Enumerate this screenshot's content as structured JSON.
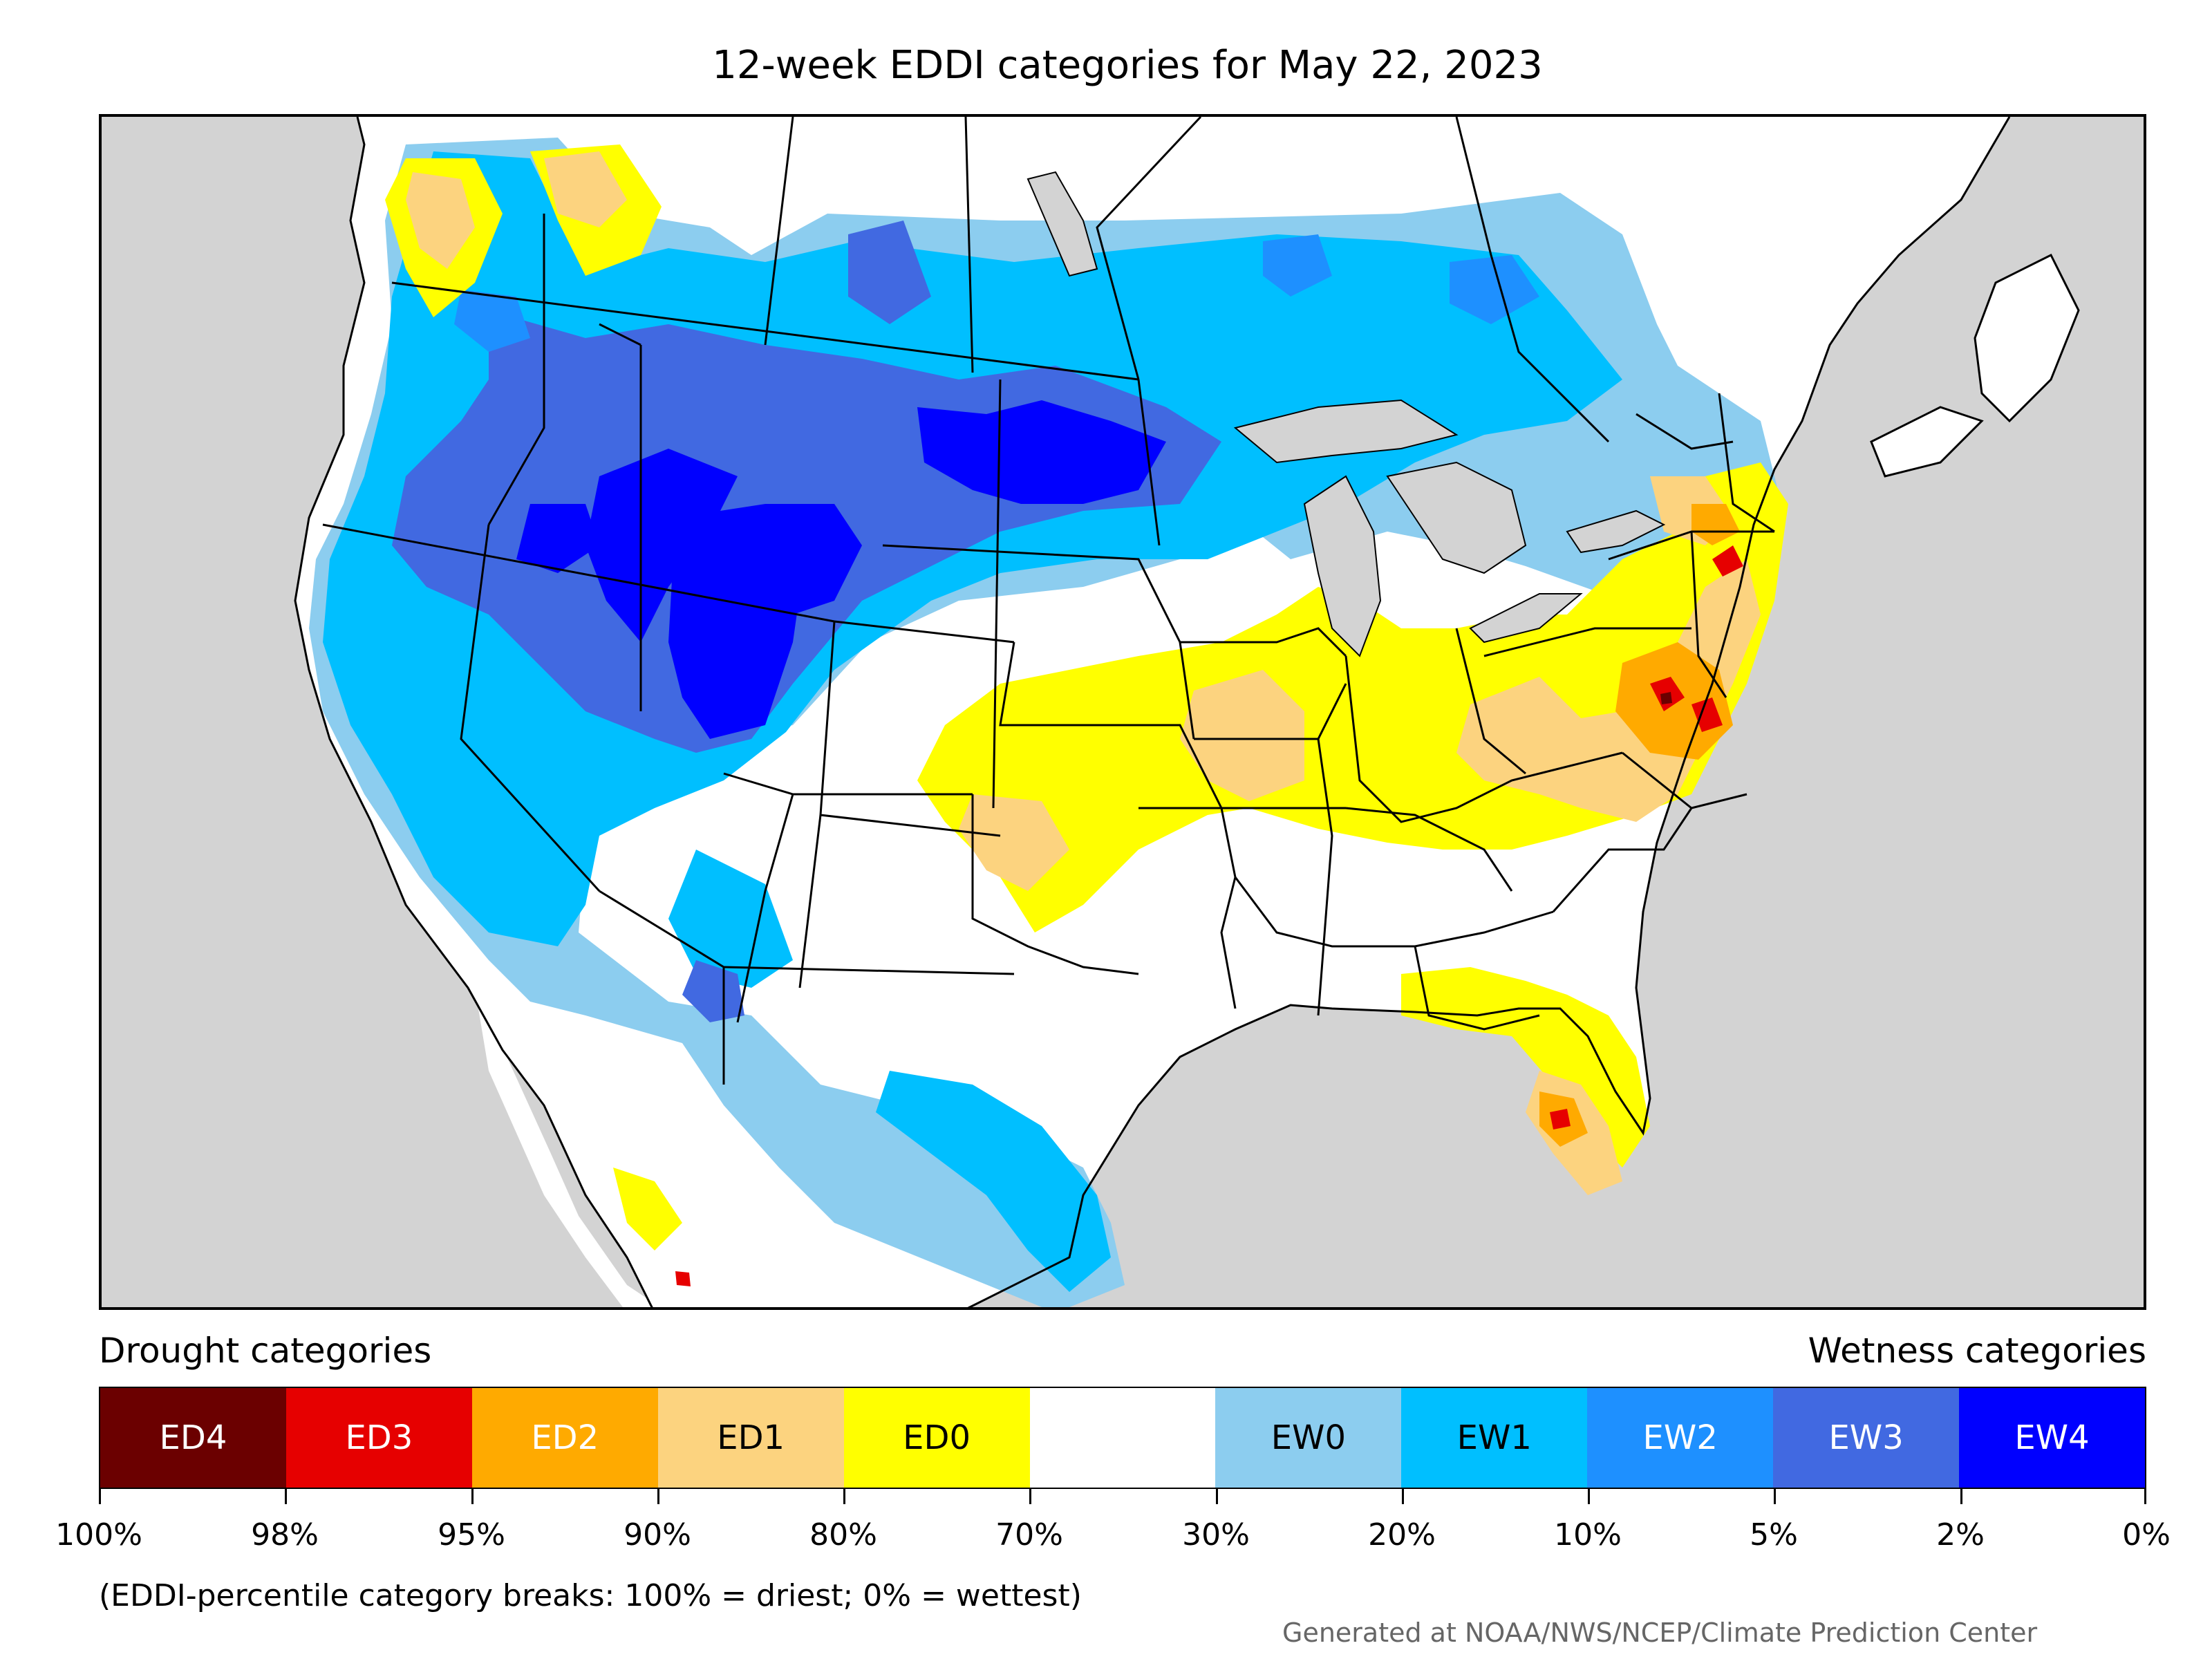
{
  "title": "12-week EDDI categories for May 22, 2023",
  "legend": {
    "drought_heading": "Drought categories",
    "wetness_heading": "Wetness categories",
    "categories": [
      {
        "label": "ED4",
        "color": "#6b0000",
        "text_color": "#ffffff"
      },
      {
        "label": "ED3",
        "color": "#e60000",
        "text_color": "#ffffff"
      },
      {
        "label": "ED2",
        "color": "#ffaa00",
        "text_color": "#ffffff"
      },
      {
        "label": "ED1",
        "color": "#fcd37f",
        "text_color": "#000000"
      },
      {
        "label": "ED0",
        "color": "#ffff00",
        "text_color": "#000000"
      },
      {
        "label": "",
        "color": "#ffffff",
        "text_color": "#000000"
      },
      {
        "label": "EW0",
        "color": "#8ccdef",
        "text_color": "#000000"
      },
      {
        "label": "EW1",
        "color": "#00bfff",
        "text_color": "#000000"
      },
      {
        "label": "EW2",
        "color": "#1e90ff",
        "text_color": "#ffffff"
      },
      {
        "label": "EW3",
        "color": "#4169e1",
        "text_color": "#ffffff"
      },
      {
        "label": "EW4",
        "color": "#0000ff",
        "text_color": "#ffffff"
      }
    ],
    "tick_labels": [
      "100%",
      "98%",
      "95%",
      "90%",
      "80%",
      "70%",
      "30%",
      "20%",
      "10%",
      "5%",
      "2%",
      "0%"
    ]
  },
  "note": "(EDDI-percentile category breaks: 100% = driest; 0% = wettest)",
  "credit": "Generated at NOAA/NWS/NCEP/Climate Prediction Center",
  "map": {
    "ocean_color": "#d3d3d3",
    "land_color": "#ffffff",
    "lake_color": "#d3d3d3"
  }
}
